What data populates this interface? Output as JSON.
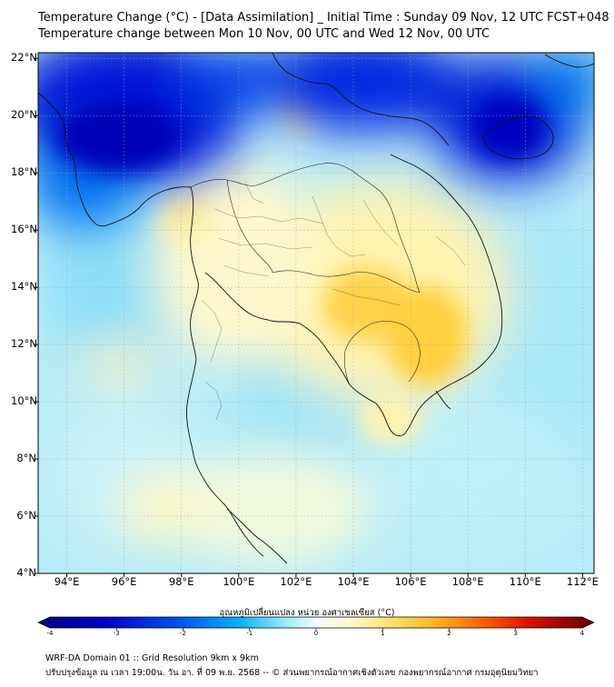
{
  "header": {
    "title_line1": "Temperature Change (°C) - [Data Assimilation] _ Initial Time : Sunday 09 Nov, 12 UTC FCST+048",
    "title_line2": "Temperature change between Mon 10 Nov, 00 UTC and Wed 12 Nov, 00 UTC"
  },
  "map": {
    "lat_labels": [
      "22°N",
      "20°N",
      "18°N",
      "16°N",
      "14°N",
      "12°N",
      "10°N",
      "8°N",
      "6°N",
      "4°N"
    ],
    "lon_labels": [
      "94°E",
      "96°E",
      "98°E",
      "100°E",
      "102°E",
      "104°E",
      "106°E",
      "108°E",
      "110°E",
      "112°E"
    ],
    "extent": {
      "lon_min": 93,
      "lon_max": 112.4,
      "lat_min": 4,
      "lat_max": 22.2
    }
  },
  "colorbar": {
    "label": "อุณหภูมิเปลี่ยนแปลง หน่วย องศาเซลเซียส (°C)",
    "ticks": [
      "-4",
      "-3",
      "-2",
      "-1",
      "0",
      "1",
      "2",
      "3",
      "4"
    ],
    "colors": [
      "#000080",
      "#0000b8",
      "#0030e0",
      "#0070f0",
      "#00b0f8",
      "#40e0f8",
      "#a0f0f8",
      "#e8fafc",
      "#ffffe0",
      "#fff0a0",
      "#ffe060",
      "#ffc030",
      "#ff9010",
      "#ff5000",
      "#e01000",
      "#a00000",
      "#600000"
    ]
  },
  "footer": {
    "line1": "WRF-DA Domain 01 :: Grid Resolution 9km x 9km",
    "line2": "ปรับปรุงข้อมูล ณ เวลา 19:00น. วัน อา. ที่ 09 พ.ย. 2568 -- © ส่วนพยากรณ์อากาศเชิงตัวเลข กองพยากรณ์อากาศ กรมอุตุนิยมวิทยา"
  }
}
